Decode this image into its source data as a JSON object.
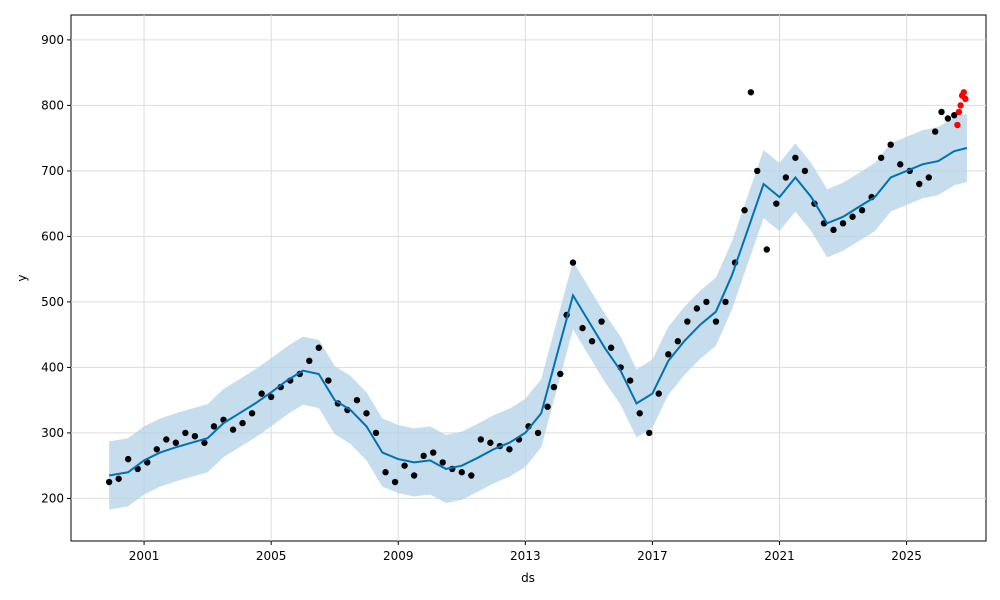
{
  "chart_data": {
    "type": "line",
    "title": "",
    "xlabel": "ds",
    "ylabel": "y",
    "x_ticks": [
      "2001",
      "2005",
      "2009",
      "2013",
      "2017",
      "2021",
      "2025"
    ],
    "y_ticks": [
      200,
      300,
      400,
      500,
      600,
      700,
      800,
      900
    ],
    "xlim": [
      1998.7,
      2027.5
    ],
    "ylim": [
      135,
      938
    ],
    "grid": true,
    "colors": {
      "observed": "#000000",
      "forecast": "#0072B2",
      "uncertainty": "#b3d2e8",
      "recent": "#ff0000",
      "grid": "#dddddd"
    },
    "series": [
      {
        "kind": "observed",
        "x": [
          1999.9,
          2000.2,
          2000.5,
          2000.8,
          2001.1,
          2001.4,
          2001.7,
          2002.0,
          2002.3,
          2002.6,
          2002.9,
          2003.2,
          2003.5,
          2003.8,
          2004.1,
          2004.4,
          2004.7,
          2005.0,
          2005.3,
          2005.6,
          2005.9,
          2006.2,
          2006.5,
          2006.8,
          2007.1,
          2007.4,
          2007.7,
          2008.0,
          2008.3,
          2008.6,
          2008.9,
          2009.2,
          2009.5,
          2009.8,
          2010.1,
          2010.4,
          2010.7,
          2011.0,
          2011.3,
          2011.6,
          2011.9,
          2012.2,
          2012.5,
          2012.8,
          2013.1,
          2013.4,
          2013.7,
          2013.9,
          2014.1,
          2014.3,
          2014.5,
          2014.8,
          2015.1,
          2015.4,
          2015.7,
          2016.0,
          2016.3,
          2016.6,
          2016.9,
          2017.2,
          2017.5,
          2017.8,
          2018.1,
          2018.4,
          2018.7,
          2019.0,
          2019.3,
          2019.6,
          2019.9,
          2020.1,
          2020.3,
          2020.6,
          2020.9,
          2021.2,
          2021.5,
          2021.8,
          2022.1,
          2022.4,
          2022.7,
          2023.0,
          2023.3,
          2023.6,
          2023.9,
          2024.2,
          2024.5,
          2024.8,
          2025.1,
          2025.4,
          2025.7,
          2025.9,
          2026.1,
          2026.3,
          2026.5
        ],
        "y": [
          225,
          230,
          260,
          245,
          255,
          275,
          290,
          285,
          300,
          295,
          285,
          310,
          320,
          305,
          315,
          330,
          360,
          355,
          370,
          380,
          390,
          410,
          430,
          380,
          345,
          335,
          350,
          330,
          300,
          240,
          225,
          250,
          235,
          265,
          270,
          255,
          245,
          240,
          235,
          290,
          285,
          280,
          275,
          290,
          310,
          300,
          340,
          370,
          390,
          480,
          560,
          460,
          440,
          470,
          430,
          400,
          380,
          330,
          300,
          360,
          420,
          440,
          470,
          490,
          500,
          470,
          500,
          560,
          640,
          820,
          700,
          580,
          650,
          690,
          720,
          700,
          650,
          620,
          610,
          620,
          630,
          640,
          660,
          720,
          740,
          710,
          700,
          680,
          690,
          760,
          790,
          780,
          785
        ]
      },
      {
        "kind": "recent",
        "x": [
          2026.6,
          2026.65,
          2026.7,
          2026.75,
          2026.8,
          2026.85
        ],
        "y": [
          770,
          790,
          800,
          815,
          820,
          810
        ]
      },
      {
        "kind": "forecast",
        "x": [
          1999.9,
          2000.5,
          2001.0,
          2001.5,
          2002.0,
          2002.5,
          2003.0,
          2003.5,
          2004.0,
          2004.5,
          2005.0,
          2005.5,
          2006.0,
          2006.5,
          2007.0,
          2007.5,
          2008.0,
          2008.5,
          2009.0,
          2009.5,
          2010.0,
          2010.5,
          2011.0,
          2011.5,
          2012.0,
          2012.5,
          2013.0,
          2013.5,
          2014.0,
          2014.5,
          2015.0,
          2015.5,
          2016.0,
          2016.5,
          2017.0,
          2017.5,
          2018.0,
          2018.5,
          2019.0,
          2019.5,
          2020.0,
          2020.5,
          2021.0,
          2021.5,
          2022.0,
          2022.5,
          2023.0,
          2023.5,
          2024.0,
          2024.5,
          2025.0,
          2025.5,
          2026.0,
          2026.5,
          2026.9
        ],
        "y": [
          235,
          240,
          258,
          270,
          278,
          285,
          292,
          315,
          330,
          345,
          362,
          380,
          395,
          390,
          350,
          335,
          310,
          270,
          260,
          255,
          258,
          245,
          250,
          262,
          275,
          285,
          300,
          330,
          420,
          510,
          470,
          430,
          395,
          345,
          360,
          410,
          440,
          465,
          485,
          540,
          610,
          680,
          660,
          690,
          660,
          620,
          630,
          645,
          660,
          690,
          700,
          710,
          715,
          730,
          735
        ]
      }
    ]
  }
}
